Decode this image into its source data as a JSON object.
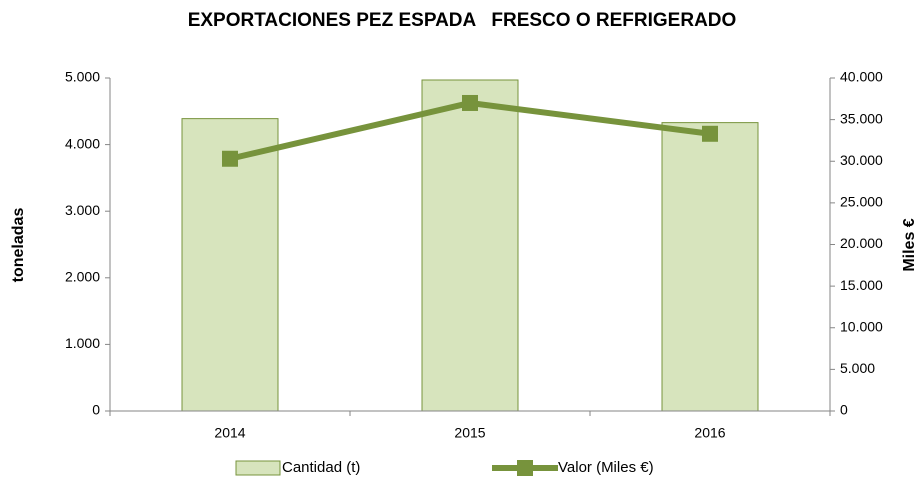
{
  "chart_data": {
    "type": "bar_line",
    "title": "EXPORTACIONES PEZ ESPADA   FRESCO O REFRIGERADO",
    "ylabel": "toneladas",
    "y2label": "Miles €",
    "categories": [
      "2014",
      "2015",
      "2016"
    ],
    "series": [
      {
        "name": "Cantidad (t)",
        "type": "bar",
        "color": "#d7e4bd",
        "edgecolor": "#77933c",
        "values": [
          4390,
          4970,
          4330
        ]
      },
      {
        "name": "Valor (Miles €)",
        "type": "line",
        "axis": "y2",
        "color": "#77933c",
        "values": [
          30300,
          37000,
          33300
        ]
      }
    ],
    "ylim": [
      0,
      5000
    ],
    "yticks": [
      0,
      {
        "value": 1000,
        "label": "1.000"
      },
      {
        "value": 2000,
        "label": "2.000"
      },
      {
        "value": 3000,
        "label": "3.000"
      },
      {
        "value": 4000,
        "label": "4.000"
      },
      {
        "value": 5000,
        "label": "5.000"
      }
    ],
    "y2lim": [
      0,
      40000
    ],
    "y2ticks": [
      0,
      {
        "value": 5000,
        "label": "5.000"
      },
      {
        "value": 10000,
        "label": "10.000"
      },
      {
        "value": 15000,
        "label": "15.000"
      },
      {
        "value": 20000,
        "label": "20.000"
      },
      {
        "value": 25000,
        "label": "25.000"
      },
      {
        "value": 30000,
        "label": "30.000"
      },
      {
        "value": 35000,
        "label": "35.000"
      },
      {
        "value": 40000,
        "label": "40.000"
      }
    ],
    "grid": false,
    "legend": "bottom"
  }
}
